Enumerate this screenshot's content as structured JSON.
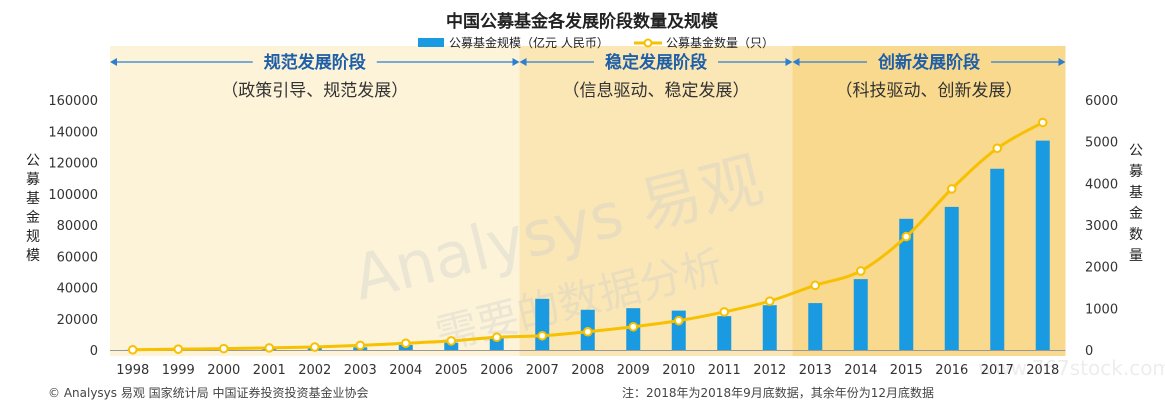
{
  "chart_data": {
    "type": "bar+line",
    "title": "中国公募基金各发展阶段数量及规模",
    "categories": [
      "1998",
      "1999",
      "2000",
      "2001",
      "2002",
      "2003",
      "2004",
      "2005",
      "2006",
      "2007",
      "2008",
      "2009",
      "2010",
      "2011",
      "2012",
      "2013",
      "2014",
      "2015",
      "2016",
      "2017",
      "2018"
    ],
    "series": [
      {
        "name": "公募基金规模（亿元 人民币）",
        "type": "bar",
        "axis": "left",
        "color": "#1a9ae0",
        "values": [
          104,
          575,
          846,
          818,
          1331,
          1715,
          3258,
          4691,
          8565,
          32756,
          25741,
          26767,
          25219,
          21680,
          28662,
          30021,
          45354,
          83972,
          91593,
          115997,
          134000
        ]
      },
      {
        "name": "公募基金数量（只）",
        "type": "line",
        "axis": "right",
        "color": "#f7c000",
        "values": [
          5,
          20,
          33,
          51,
          71,
          110,
          161,
          218,
          307,
          341,
          439,
          557,
          704,
          914,
          1173,
          1552,
          1897,
          2722,
          3867,
          4841,
          5460
        ]
      }
    ],
    "y_left": {
      "label": "公募基金规模",
      "ticks": [
        "0",
        "20000",
        "40000",
        "60000",
        "80000",
        "100000",
        "120000",
        "140000",
        "160000"
      ],
      "range": [
        0,
        160000
      ]
    },
    "y_right": {
      "label": "公募基金数量",
      "ticks": [
        "0",
        "1000",
        "2000",
        "3000",
        "4000",
        "5000",
        "6000"
      ],
      "range": [
        0,
        6000
      ]
    },
    "phases": [
      {
        "title": "规范发展阶段",
        "subtitle": "（政策引导、规范发展）",
        "start": "1998",
        "end": "2006",
        "color": "#fdf3d8"
      },
      {
        "title": "稳定发展阶段",
        "subtitle": "（信息驱动、稳定发展）",
        "start": "2007",
        "end": "2012",
        "color": "#fbe7b5"
      },
      {
        "title": "创新发展阶段",
        "subtitle": "（科技驱动、创新发展）",
        "start": "2013",
        "end": "2018",
        "color": "#f9d98e"
      }
    ],
    "legend_placement": "top-center",
    "grid": false
  },
  "footer": {
    "source": "© Analysys 易观 国家统计局 中国证券投资投资基金业协会",
    "note": "注：2018年为2018年9月底数据，其余年份为12月底数据"
  },
  "watermark": {
    "brand": "Analysys 易观",
    "slogan": "需要的数据分析",
    "site": "www.767stock.com"
  }
}
